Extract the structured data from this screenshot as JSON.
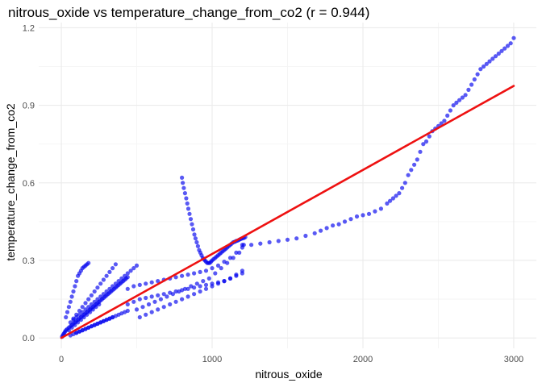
{
  "chart_data": {
    "type": "scatter",
    "title": "nitrous_oxide vs temperature_change_from_co2 (r = 0.944)",
    "xlabel": "nitrous_oxide",
    "ylabel": "temperature_change_from_co2",
    "xlim": [
      -150,
      3150
    ],
    "ylim": [
      -0.04,
      1.22
    ],
    "x_ticks": [
      {
        "value": 0,
        "label": "0"
      },
      {
        "value": 1000,
        "label": "1000"
      },
      {
        "value": 2000,
        "label": "2000"
      },
      {
        "value": 3000,
        "label": "3000"
      }
    ],
    "y_ticks": [
      {
        "value": 0.0,
        "label": "0.0"
      },
      {
        "value": 0.3,
        "label": "0.3"
      },
      {
        "value": 0.6,
        "label": "0.6"
      },
      {
        "value": 0.9,
        "label": "0.9"
      },
      {
        "value": 1.2,
        "label": "1.2"
      }
    ],
    "grid": true,
    "legend": "none",
    "colors": {
      "points": "#0000ee",
      "fit_line": "#ee1111",
      "grid": "#ebebeb",
      "text": "#4d4d4d"
    },
    "fit_line": {
      "x": [
        0,
        3000
      ],
      "y": [
        0.0,
        0.975
      ]
    },
    "series": [
      {
        "x": [
          5,
          10,
          15,
          20,
          25,
          30,
          40,
          50,
          60,
          70,
          80,
          90,
          100,
          110,
          120,
          130,
          140,
          150,
          160,
          170,
          180,
          190,
          200,
          210,
          220,
          230,
          240,
          250,
          260,
          270,
          280,
          290,
          300,
          310,
          320,
          330,
          340,
          350,
          360,
          370,
          380,
          390,
          400,
          410,
          420,
          430,
          440,
          100,
          120,
          140,
          160,
          180,
          200,
          220,
          240,
          260,
          280,
          300,
          320,
          340,
          360,
          380,
          400,
          420,
          440,
          60,
          80,
          100,
          120,
          140,
          160,
          180,
          200,
          220,
          240,
          260,
          280,
          300,
          320,
          340,
          360,
          50,
          70,
          90,
          110,
          130,
          150,
          170,
          190,
          210,
          230,
          250,
          30,
          40,
          50,
          60,
          70,
          80,
          90,
          100,
          110,
          120,
          130,
          140,
          150,
          160,
          170,
          180,
          80,
          100,
          120,
          140,
          160,
          180,
          200,
          220,
          240,
          260,
          280,
          300,
          320,
          340,
          360,
          380,
          400,
          420,
          440,
          460,
          480,
          500,
          60,
          80,
          100,
          120,
          140,
          160,
          180,
          200,
          220,
          240,
          260,
          280,
          300,
          320,
          340,
          440,
          480,
          520,
          560,
          600,
          640,
          680,
          720,
          760,
          800,
          840,
          880,
          920,
          960,
          1000,
          1040,
          1080,
          1120,
          1160,
          1200,
          440,
          480,
          520,
          560,
          600,
          640,
          680,
          720,
          760,
          800,
          840,
          880,
          920,
          960,
          1000,
          1040,
          1080,
          1120,
          1160,
          1200,
          500,
          540,
          580,
          620,
          660,
          700,
          740,
          780,
          820,
          860,
          900,
          940,
          980,
          1020,
          1060,
          1100,
          1140,
          1180,
          1210,
          520,
          560,
          600,
          640,
          680,
          720,
          760,
          800,
          840,
          880,
          920,
          960,
          1000,
          1040,
          1080,
          1120,
          1160,
          1200,
          800,
          805,
          812,
          820,
          828,
          835,
          842,
          850,
          858,
          866,
          874,
          882,
          890,
          898,
          906,
          914,
          922,
          930,
          938,
          945,
          952,
          960,
          968,
          976,
          984,
          992,
          1000,
          1010,
          1020,
          1030,
          1040,
          1050,
          1060,
          1070,
          1080,
          1090,
          1100,
          1110,
          1120,
          1130,
          1140,
          1150,
          1160,
          1170,
          1180,
          1190,
          1200,
          1210,
          1220,
          1200,
          1260,
          1320,
          1380,
          1440,
          1500,
          1560,
          1620,
          1680,
          1720,
          1760,
          1800,
          1840,
          1880,
          1920,
          1960,
          2000,
          2040,
          2080,
          2120,
          2160,
          2180,
          2200,
          2220,
          2240,
          2260,
          2280,
          2300,
          2320,
          2340,
          2360,
          2380,
          2400,
          2420,
          2440,
          2460,
          2480,
          2500,
          2520,
          2540,
          2560,
          2580,
          2600,
          2620,
          2640,
          2660,
          2680,
          2700,
          2720,
          2740,
          2760,
          2780,
          2800,
          2820,
          2840,
          2860,
          2880,
          2900,
          2920,
          2940,
          2960,
          2980,
          3000
        ],
        "y": [
          0.005,
          0.01,
          0.015,
          0.02,
          0.025,
          0.03,
          0.035,
          0.04,
          0.045,
          0.05,
          0.055,
          0.06,
          0.065,
          0.07,
          0.075,
          0.08,
          0.085,
          0.09,
          0.095,
          0.1,
          0.105,
          0.11,
          0.115,
          0.12,
          0.125,
          0.13,
          0.135,
          0.14,
          0.145,
          0.15,
          0.155,
          0.16,
          0.165,
          0.17,
          0.175,
          0.18,
          0.185,
          0.19,
          0.195,
          0.2,
          0.205,
          0.21,
          0.215,
          0.22,
          0.225,
          0.23,
          0.235,
          0.02,
          0.025,
          0.03,
          0.035,
          0.04,
          0.045,
          0.05,
          0.055,
          0.06,
          0.065,
          0.07,
          0.075,
          0.08,
          0.085,
          0.09,
          0.095,
          0.1,
          0.105,
          0.06,
          0.075,
          0.09,
          0.105,
          0.12,
          0.135,
          0.15,
          0.165,
          0.18,
          0.195,
          0.21,
          0.225,
          0.24,
          0.255,
          0.27,
          0.285,
          0.03,
          0.04,
          0.05,
          0.06,
          0.07,
          0.08,
          0.09,
          0.1,
          0.11,
          0.12,
          0.13,
          0.08,
          0.1,
          0.12,
          0.14,
          0.16,
          0.18,
          0.2,
          0.22,
          0.24,
          0.25,
          0.26,
          0.27,
          0.275,
          0.28,
          0.285,
          0.29,
          0.07,
          0.08,
          0.09,
          0.1,
          0.11,
          0.12,
          0.13,
          0.14,
          0.15,
          0.16,
          0.17,
          0.18,
          0.19,
          0.2,
          0.21,
          0.22,
          0.23,
          0.24,
          0.25,
          0.26,
          0.27,
          0.28,
          0.01,
          0.015,
          0.02,
          0.025,
          0.03,
          0.035,
          0.04,
          0.045,
          0.05,
          0.055,
          0.06,
          0.065,
          0.07,
          0.075,
          0.08,
          0.19,
          0.2,
          0.205,
          0.21,
          0.215,
          0.22,
          0.225,
          0.23,
          0.235,
          0.24,
          0.245,
          0.25,
          0.255,
          0.26,
          0.27,
          0.28,
          0.295,
          0.31,
          0.33,
          0.35,
          0.13,
          0.14,
          0.15,
          0.155,
          0.16,
          0.165,
          0.17,
          0.175,
          0.18,
          0.185,
          0.19,
          0.195,
          0.2,
          0.205,
          0.21,
          0.215,
          0.22,
          0.23,
          0.245,
          0.26,
          0.11,
          0.12,
          0.13,
          0.14,
          0.15,
          0.16,
          0.17,
          0.18,
          0.19,
          0.2,
          0.21,
          0.22,
          0.23,
          0.25,
          0.27,
          0.29,
          0.31,
          0.33,
          0.36,
          0.08,
          0.09,
          0.1,
          0.11,
          0.12,
          0.13,
          0.14,
          0.15,
          0.16,
          0.17,
          0.18,
          0.19,
          0.2,
          0.21,
          0.22,
          0.23,
          0.24,
          0.25,
          0.62,
          0.6,
          0.58,
          0.56,
          0.54,
          0.52,
          0.5,
          0.48,
          0.46,
          0.44,
          0.42,
          0.4,
          0.385,
          0.37,
          0.355,
          0.34,
          0.33,
          0.32,
          0.31,
          0.305,
          0.3,
          0.295,
          0.29,
          0.29,
          0.29,
          0.295,
          0.3,
          0.305,
          0.31,
          0.315,
          0.32,
          0.325,
          0.33,
          0.335,
          0.34,
          0.345,
          0.35,
          0.355,
          0.36,
          0.365,
          0.37,
          0.372,
          0.375,
          0.377,
          0.38,
          0.383,
          0.385,
          0.387,
          0.39,
          0.36,
          0.36,
          0.365,
          0.37,
          0.375,
          0.38,
          0.385,
          0.395,
          0.405,
          0.415,
          0.425,
          0.435,
          0.44,
          0.45,
          0.46,
          0.47,
          0.475,
          0.48,
          0.49,
          0.5,
          0.52,
          0.53,
          0.54,
          0.55,
          0.56,
          0.58,
          0.6,
          0.63,
          0.65,
          0.67,
          0.69,
          0.72,
          0.75,
          0.76,
          0.78,
          0.8,
          0.81,
          0.82,
          0.83,
          0.84,
          0.86,
          0.88,
          0.9,
          0.91,
          0.92,
          0.93,
          0.94,
          0.96,
          0.98,
          1.0,
          1.02,
          1.04,
          1.05,
          1.06,
          1.07,
          1.08,
          1.09,
          1.1,
          1.11,
          1.12,
          1.13,
          1.14,
          1.16
        ]
      }
    ]
  }
}
